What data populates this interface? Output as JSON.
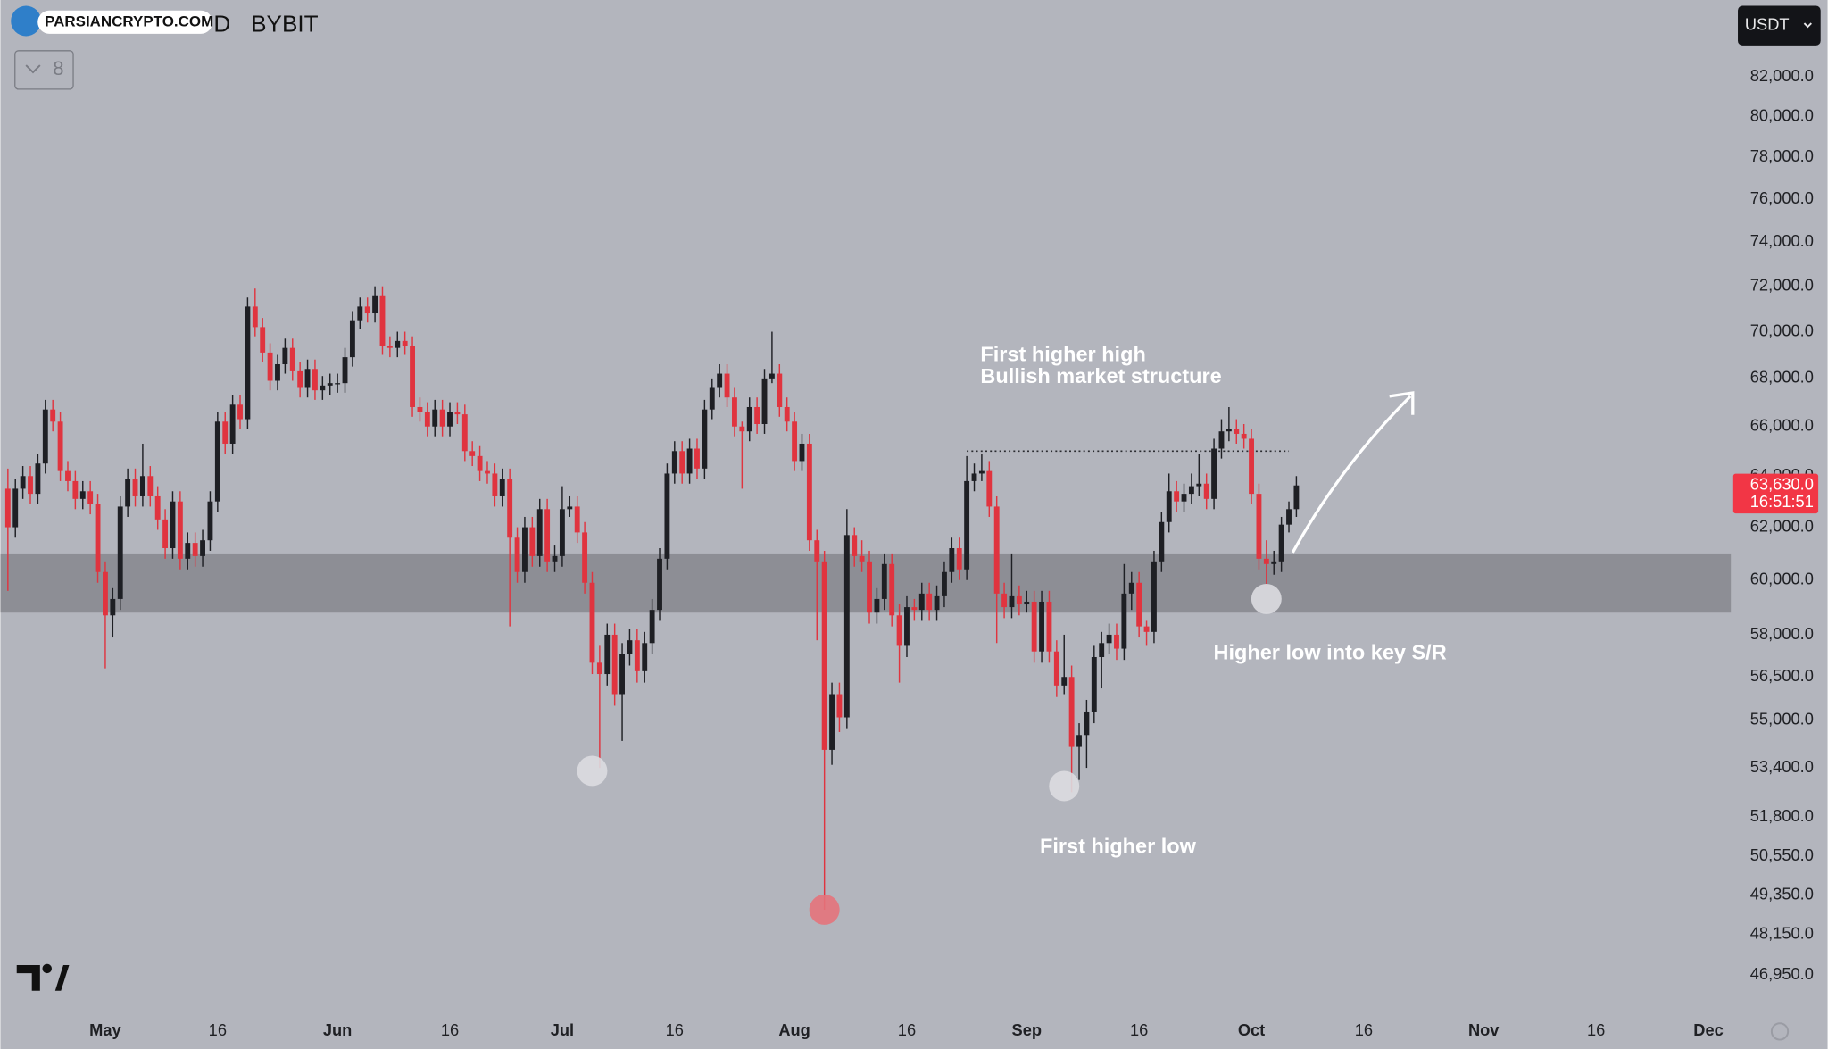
{
  "header": {
    "watermark": "PARSIANCRYPTO.COM",
    "symbol_tail": "D",
    "exchange": "BYBIT",
    "indicator_count": "8",
    "currency": "USDT"
  },
  "chart_data": {
    "type": "candlestick",
    "log_scale": true,
    "grid": false,
    "up_color": "#1e1f24",
    "down_color": "#e0343f",
    "xlim": [
      108,
      339
    ],
    "ylim": [
      46000,
      86000
    ],
    "xticks": [
      {
        "value": 122,
        "label": "May"
      },
      {
        "value": 137,
        "label": "16"
      },
      {
        "value": 153,
        "label": "Jun"
      },
      {
        "value": 168,
        "label": "16"
      },
      {
        "value": 183,
        "label": "Jul"
      },
      {
        "value": 198,
        "label": "16"
      },
      {
        "value": 214,
        "label": "Aug"
      },
      {
        "value": 229,
        "label": "16"
      },
      {
        "value": 245,
        "label": "Sep"
      },
      {
        "value": 260,
        "label": "16"
      },
      {
        "value": 275,
        "label": "Oct"
      },
      {
        "value": 290,
        "label": "16"
      },
      {
        "value": 306,
        "label": "Nov"
      },
      {
        "value": 321,
        "label": "16"
      },
      {
        "value": 336,
        "label": "Dec"
      }
    ],
    "yticks": [
      {
        "value": 46950,
        "label": "46,950.0"
      },
      {
        "value": 48150,
        "label": "48,150.0"
      },
      {
        "value": 49350,
        "label": "49,350.0"
      },
      {
        "value": 50550,
        "label": "50,550.0"
      },
      {
        "value": 51800,
        "label": "51,800.0"
      },
      {
        "value": 53400,
        "label": "53,400.0"
      },
      {
        "value": 55000,
        "label": "55,000.0"
      },
      {
        "value": 56500,
        "label": "56,500.0"
      },
      {
        "value": 58000,
        "label": "58,000.0"
      },
      {
        "value": 60000,
        "label": "60,000.0"
      },
      {
        "value": 62000,
        "label": "62,000.0"
      },
      {
        "value": 64000,
        "label": "64,000.0"
      },
      {
        "value": 66000,
        "label": "66,000.0"
      },
      {
        "value": 68000,
        "label": "68,000.0"
      },
      {
        "value": 70000,
        "label": "70,000.0"
      },
      {
        "value": 72000,
        "label": "72,000.0"
      },
      {
        "value": 74000,
        "label": "74,000.0"
      },
      {
        "value": 76000,
        "label": "76,000.0"
      },
      {
        "value": 78000,
        "label": "78,000.0"
      },
      {
        "value": 80000,
        "label": "80,000.0"
      },
      {
        "value": 82000,
        "label": "82,000.0"
      }
    ],
    "x": [
      109,
      110,
      111,
      112,
      113,
      114,
      115,
      116,
      117,
      118,
      119,
      120,
      121,
      122,
      123,
      124,
      125,
      126,
      127,
      128,
      129,
      130,
      131,
      132,
      133,
      134,
      135,
      136,
      137,
      138,
      139,
      140,
      141,
      142,
      143,
      144,
      145,
      146,
      147,
      148,
      149,
      150,
      151,
      152,
      153,
      154,
      155,
      156,
      157,
      158,
      159,
      160,
      161,
      162,
      163,
      164,
      165,
      166,
      167,
      168,
      169,
      170,
      171,
      172,
      173,
      174,
      175,
      176,
      177,
      178,
      179,
      180,
      181,
      182,
      183,
      184,
      185,
      186,
      187,
      188,
      189,
      190,
      191,
      192,
      193,
      194,
      195,
      196,
      197,
      198,
      199,
      200,
      201,
      202,
      203,
      204,
      205,
      206,
      207,
      208,
      209,
      210,
      211,
      212,
      213,
      214,
      215,
      216,
      217,
      218,
      219,
      220,
      221,
      222,
      223,
      224,
      225,
      226,
      227,
      228,
      229,
      230,
      231,
      232,
      233,
      234,
      235,
      236,
      237,
      238,
      239,
      240,
      241,
      242,
      243,
      244,
      245,
      246,
      247,
      248,
      249,
      250,
      251,
      252,
      253,
      254,
      255,
      256,
      257,
      258,
      259,
      260,
      261,
      262,
      263,
      264,
      265,
      266,
      267,
      268,
      269,
      270,
      271,
      272,
      273,
      274,
      275,
      276,
      277,
      278,
      279,
      280,
      281
    ],
    "ohlc": [
      [
        63500,
        64300,
        59600,
        62000
      ],
      [
        62000,
        63900,
        61600,
        63500
      ],
      [
        63500,
        64400,
        63100,
        64000
      ],
      [
        64000,
        64400,
        62900,
        63300
      ],
      [
        63300,
        64900,
        62900,
        64500
      ],
      [
        64500,
        67100,
        64100,
        66700
      ],
      [
        66700,
        67100,
        65800,
        66200
      ],
      [
        66200,
        66600,
        63800,
        64200
      ],
      [
        64200,
        64600,
        63400,
        63800
      ],
      [
        63800,
        64200,
        62700,
        63100
      ],
      [
        63100,
        63800,
        62700,
        63400
      ],
      [
        63400,
        63800,
        62500,
        62900
      ],
      [
        62900,
        63300,
        59900,
        60300
      ],
      [
        60300,
        60700,
        56800,
        58700
      ],
      [
        58700,
        59700,
        57900,
        59300
      ],
      [
        59300,
        63200,
        58900,
        62800
      ],
      [
        62800,
        64300,
        62400,
        63900
      ],
      [
        63900,
        64300,
        62800,
        63200
      ],
      [
        63200,
        65300,
        62800,
        64000
      ],
      [
        64000,
        64400,
        62800,
        63200
      ],
      [
        63200,
        63600,
        61900,
        62300
      ],
      [
        62300,
        62700,
        60800,
        61200
      ],
      [
        61200,
        63400,
        60800,
        63000
      ],
      [
        63000,
        63400,
        60400,
        60800
      ],
      [
        60800,
        61800,
        60400,
        61400
      ],
      [
        61400,
        61800,
        60500,
        60900
      ],
      [
        60900,
        61900,
        60500,
        61500
      ],
      [
        61500,
        63400,
        61100,
        63000
      ],
      [
        63000,
        66600,
        62600,
        66200
      ],
      [
        66200,
        66600,
        64900,
        65300
      ],
      [
        65300,
        67300,
        64900,
        66900
      ],
      [
        66900,
        67300,
        65900,
        66300
      ],
      [
        66300,
        71500,
        65900,
        71100
      ],
      [
        71100,
        71900,
        69800,
        70200
      ],
      [
        70200,
        70600,
        68700,
        69100
      ],
      [
        69100,
        69500,
        67500,
        67900
      ],
      [
        67900,
        69000,
        67500,
        68600
      ],
      [
        68600,
        69700,
        68200,
        69300
      ],
      [
        69300,
        69700,
        67900,
        68300
      ],
      [
        68300,
        68700,
        67200,
        67600
      ],
      [
        67600,
        68800,
        67200,
        68400
      ],
      [
        68400,
        68800,
        67100,
        67500
      ],
      [
        67500,
        68100,
        67100,
        67700
      ],
      [
        67700,
        68200,
        67300,
        67800
      ],
      [
        67800,
        68200,
        67400,
        67800
      ],
      [
        67800,
        69300,
        67400,
        68900
      ],
      [
        68900,
        70900,
        68500,
        70500
      ],
      [
        70500,
        71500,
        70100,
        71100
      ],
      [
        71100,
        71500,
        70400,
        70800
      ],
      [
        70800,
        72000,
        70400,
        71600
      ],
      [
        71600,
        72000,
        69000,
        69400
      ],
      [
        69400,
        69800,
        68900,
        69300
      ],
      [
        69300,
        70000,
        68900,
        69600
      ],
      [
        69600,
        70000,
        69000,
        69400
      ],
      [
        69400,
        69800,
        66400,
        66800
      ],
      [
        66800,
        67200,
        66200,
        66600
      ],
      [
        66600,
        67000,
        65600,
        66000
      ],
      [
        66000,
        67100,
        65600,
        66700
      ],
      [
        66700,
        67100,
        65600,
        66000
      ],
      [
        66000,
        67000,
        65600,
        66600
      ],
      [
        66600,
        67000,
        66100,
        66500
      ],
      [
        66500,
        66900,
        64600,
        65000
      ],
      [
        65000,
        65400,
        64400,
        64800
      ],
      [
        64800,
        65200,
        63800,
        64200
      ],
      [
        64200,
        64600,
        63700,
        64100
      ],
      [
        64100,
        64500,
        62800,
        63200
      ],
      [
        63200,
        64300,
        62800,
        63900
      ],
      [
        63900,
        64300,
        58300,
        61600
      ],
      [
        61600,
        62000,
        59900,
        60300
      ],
      [
        60300,
        62400,
        59900,
        62000
      ],
      [
        62000,
        62400,
        60500,
        60900
      ],
      [
        60900,
        63100,
        60500,
        62700
      ],
      [
        62700,
        63100,
        60300,
        60700
      ],
      [
        60700,
        61300,
        60300,
        60900
      ],
      [
        60900,
        63600,
        60500,
        62700
      ],
      [
        62700,
        63200,
        62400,
        62800
      ],
      [
        62800,
        63200,
        61400,
        61800
      ],
      [
        61800,
        62200,
        59500,
        59900
      ],
      [
        59900,
        60300,
        56600,
        57000
      ],
      [
        57000,
        57600,
        53400,
        56600
      ],
      [
        56600,
        58400,
        56200,
        58000
      ],
      [
        58000,
        58400,
        55500,
        55900
      ],
      [
        55900,
        57700,
        54300,
        57300
      ],
      [
        57300,
        58200,
        56900,
        57800
      ],
      [
        57800,
        58200,
        56300,
        56700
      ],
      [
        56700,
        58100,
        56300,
        57700
      ],
      [
        57700,
        59300,
        57300,
        58900
      ],
      [
        58900,
        61200,
        58500,
        60800
      ],
      [
        60800,
        64500,
        60400,
        64100
      ],
      [
        64100,
        65400,
        63700,
        65000
      ],
      [
        65000,
        65400,
        63700,
        64100
      ],
      [
        64100,
        65500,
        63700,
        65100
      ],
      [
        65100,
        65500,
        63900,
        64300
      ],
      [
        64300,
        67100,
        63900,
        66700
      ],
      [
        66700,
        68000,
        66300,
        67600
      ],
      [
        67600,
        68600,
        67200,
        68200
      ],
      [
        68200,
        68600,
        66800,
        67200
      ],
      [
        67200,
        67600,
        65600,
        66000
      ],
      [
        66000,
        66200,
        63500,
        65800
      ],
      [
        65800,
        67200,
        65400,
        66800
      ],
      [
        66800,
        67200,
        65700,
        66100
      ],
      [
        66100,
        68400,
        65700,
        68000
      ],
      [
        68000,
        70000,
        67800,
        68200
      ],
      [
        68200,
        68600,
        66400,
        66800
      ],
      [
        66800,
        67200,
        65800,
        66200
      ],
      [
        66200,
        66600,
        64200,
        64600
      ],
      [
        64600,
        65700,
        64200,
        65300
      ],
      [
        65300,
        65700,
        61100,
        61500
      ],
      [
        61500,
        61900,
        57800,
        60700
      ],
      [
        60700,
        61100,
        48900,
        54000
      ],
      [
        54000,
        56300,
        53500,
        55900
      ],
      [
        55900,
        56300,
        54600,
        55100
      ],
      [
        55100,
        62700,
        54700,
        61700
      ],
      [
        61700,
        62000,
        60500,
        60900
      ],
      [
        60900,
        61500,
        60300,
        60700
      ],
      [
        60700,
        61100,
        58400,
        58800
      ],
      [
        58800,
        59700,
        58400,
        59300
      ],
      [
        59300,
        61000,
        58900,
        60600
      ],
      [
        60600,
        61000,
        58300,
        58700
      ],
      [
        58700,
        59100,
        56300,
        57600
      ],
      [
        57600,
        59400,
        57200,
        59000
      ],
      [
        59000,
        59300,
        58500,
        58900
      ],
      [
        58900,
        59900,
        58500,
        59500
      ],
      [
        59500,
        59900,
        58500,
        58900
      ],
      [
        58900,
        59800,
        58500,
        59400
      ],
      [
        59400,
        60700,
        59000,
        60300
      ],
      [
        60300,
        61600,
        59900,
        61200
      ],
      [
        61200,
        61600,
        60000,
        60400
      ],
      [
        60400,
        64800,
        60000,
        63800
      ],
      [
        63800,
        64500,
        63400,
        64100
      ],
      [
        64100,
        64900,
        63800,
        64200
      ],
      [
        64200,
        64600,
        62400,
        62800
      ],
      [
        62800,
        63200,
        57700,
        59500
      ],
      [
        59500,
        59900,
        58600,
        59000
      ],
      [
        59000,
        61000,
        58600,
        59400
      ],
      [
        59400,
        59800,
        58700,
        59100
      ],
      [
        59100,
        59600,
        58800,
        59200
      ],
      [
        59200,
        59600,
        57000,
        57400
      ],
      [
        57400,
        59600,
        57000,
        59200
      ],
      [
        59200,
        59600,
        57000,
        57400
      ],
      [
        57400,
        57800,
        55800,
        56200
      ],
      [
        56200,
        58000,
        55900,
        56500
      ],
      [
        56500,
        56900,
        52600,
        54100
      ],
      [
        54100,
        54900,
        53000,
        54500
      ],
      [
        54500,
        55700,
        53400,
        55300
      ],
      [
        55300,
        57600,
        54900,
        57200
      ],
      [
        57200,
        58100,
        56100,
        57700
      ],
      [
        57700,
        58400,
        57300,
        58000
      ],
      [
        58000,
        58400,
        57100,
        57500
      ],
      [
        57500,
        60600,
        57100,
        59500
      ],
      [
        59500,
        60300,
        58900,
        59900
      ],
      [
        59900,
        60300,
        57900,
        58300
      ],
      [
        58300,
        58500,
        57600,
        58100
      ],
      [
        58100,
        61100,
        57700,
        60700
      ],
      [
        60700,
        62600,
        60300,
        62200
      ],
      [
        62200,
        64100,
        61800,
        63400
      ],
      [
        63400,
        63800,
        62600,
        63000
      ],
      [
        63000,
        63700,
        62600,
        63300
      ],
      [
        63300,
        64100,
        62900,
        63600
      ],
      [
        63600,
        64900,
        63200,
        63700
      ],
      [
        63700,
        64100,
        62700,
        63100
      ],
      [
        63100,
        65500,
        62700,
        65100
      ],
      [
        65100,
        66300,
        64700,
        65800
      ],
      [
        65800,
        66800,
        65400,
        65900
      ],
      [
        65900,
        66300,
        65300,
        65700
      ],
      [
        65700,
        66100,
        65100,
        65500
      ],
      [
        65500,
        65900,
        62900,
        63300
      ],
      [
        63300,
        63700,
        60400,
        60800
      ],
      [
        60800,
        61500,
        59800,
        60600
      ],
      [
        60600,
        61100,
        60200,
        60700
      ],
      [
        60700,
        62400,
        60300,
        62100
      ],
      [
        62100,
        63000,
        61800,
        62700
      ],
      [
        62700,
        64000,
        62400,
        63630
      ]
    ],
    "zone": {
      "ylim": [
        58800,
        61000
      ],
      "color": "#8d8e95"
    },
    "level": {
      "value": 65000,
      "x": [
        237,
        280
      ]
    },
    "markers": [
      {
        "x": 187,
        "y": 53300,
        "color": "#dcdce0"
      },
      {
        "x": 218,
        "y": 48900,
        "color": "#e4737b"
      },
      {
        "x": 250,
        "y": 52800,
        "color": "#dcdce0"
      },
      {
        "x": 277,
        "y": 59300,
        "color": "#dcdce0"
      }
    ],
    "current_price": {
      "value": 63630,
      "label": "63,630.0"
    },
    "countdown": "16:51:51",
    "annotations": [
      "First higher high",
      "Bullish market structure",
      "Higher low into key S/R",
      "First higher low"
    ]
  }
}
